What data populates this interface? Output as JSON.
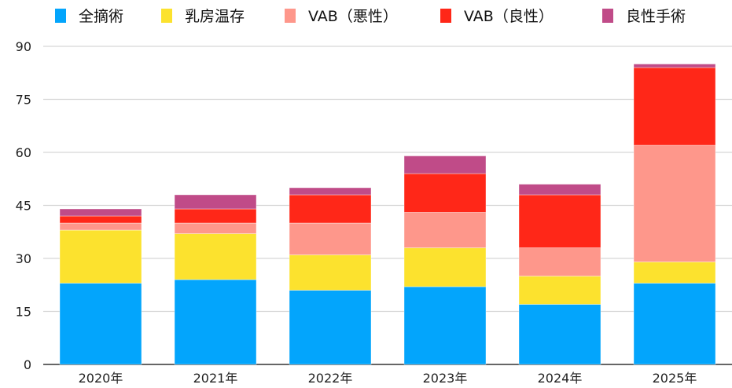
{
  "chart_data": {
    "type": "bar",
    "stacked": true,
    "categories": [
      "2020年",
      "2021年",
      "2022年",
      "2023年",
      "2024年",
      "2025年"
    ],
    "series": [
      {
        "name": "全摘術",
        "color": "#03a5fc",
        "values": [
          23,
          24,
          21,
          22,
          17,
          23
        ]
      },
      {
        "name": "乳房温存",
        "color": "#fce22e",
        "values": [
          15,
          13,
          10,
          11,
          8,
          6
        ]
      },
      {
        "name": "VAB（悪性）",
        "color": "#fe978b",
        "values": [
          2,
          3,
          9,
          10,
          8,
          33
        ]
      },
      {
        "name": "VAB（良性）",
        "color": "#ff2718",
        "values": [
          2,
          4,
          8,
          11,
          15,
          22
        ]
      },
      {
        "name": "良性手術",
        "color": "#c04b88",
        "values": [
          2,
          4,
          2,
          5,
          3,
          1
        ]
      }
    ],
    "ylim": [
      0,
      90
    ],
    "yticks": [
      "0",
      "15",
      "30",
      "45",
      "60",
      "75",
      "90"
    ],
    "grid": true,
    "legend": "top"
  }
}
